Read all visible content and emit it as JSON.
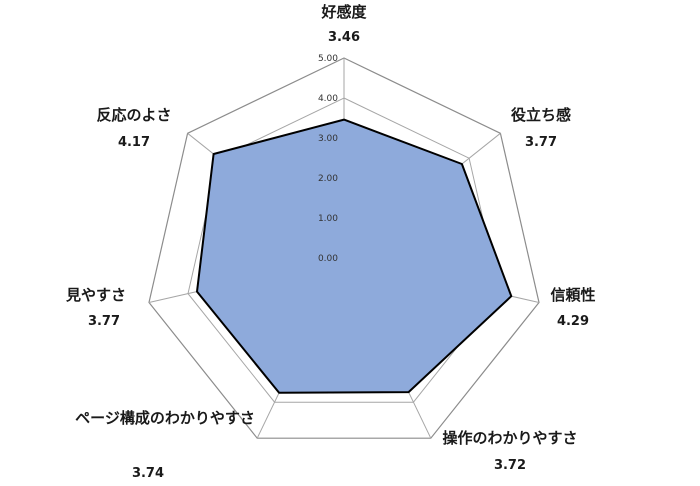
{
  "chart_data": {
    "type": "radar",
    "categories": [
      "好感度",
      "役立ち感",
      "信頼性",
      "操作のわかりやすさ",
      "ページ構成のわかりやすさ",
      "見やすさ",
      "反応のよさ"
    ],
    "values": [
      3.46,
      3.77,
      4.29,
      3.72,
      3.74,
      3.77,
      4.17
    ],
    "value_labels": [
      "3.46",
      "3.77",
      "4.29",
      "3.72",
      "3.74",
      "3.77",
      "4.17"
    ],
    "rlim": [
      0,
      5
    ],
    "ticks": [
      "0.00",
      "1.00",
      "2.00",
      "3.00",
      "4.00",
      "5.00"
    ],
    "grid": true,
    "colors": {
      "fill": "#8eaadb",
      "line": "#000000",
      "grid": "#a6a6a6"
    }
  }
}
